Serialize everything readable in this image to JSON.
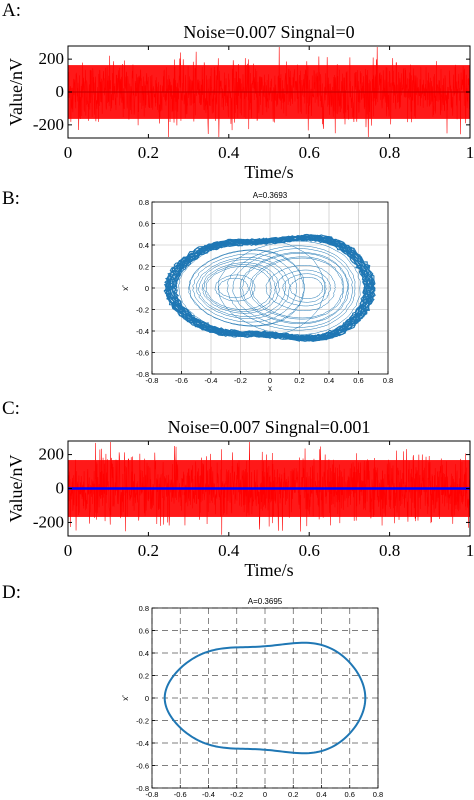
{
  "chart_data": [
    {
      "panel": "A:",
      "type": "line",
      "title": "Noise=0.007   Singnal=0",
      "xlabel": "Time/s",
      "ylabel": "Value/nV",
      "xlim": [
        0,
        1
      ],
      "ylim": [
        -280,
        280
      ],
      "xticks": [
        "0",
        "0.2",
        "0.4",
        "0.6",
        "0.8",
        "1"
      ],
      "yticks": [
        "200",
        "0",
        "-200"
      ],
      "series": [
        {
          "color": "#ff0000",
          "noise_amplitude": 210,
          "values": "random noise, approx ±210 nV"
        },
        {
          "color": "#cc0000",
          "values": [
            0,
            0
          ]
        }
      ]
    },
    {
      "panel": "B:",
      "type": "line",
      "title": "A=0.3693",
      "xlabel": "x",
      "ylabel": "x'",
      "xlim": [
        -0.8,
        0.8
      ],
      "ylim": [
        -0.8,
        0.8
      ],
      "xticks": [
        "-0.8",
        "-0.6",
        "-0.4",
        "-0.2",
        "0",
        "0.2",
        "0.4",
        "0.6",
        "0.8"
      ],
      "yticks": [
        "0.8",
        "0.6",
        "0.4",
        "0.2",
        "0",
        "-0.2",
        "-0.4",
        "-0.6",
        "-0.8"
      ],
      "grid": true,
      "series": [
        {
          "color": "#1f77b4",
          "description": "chaotic phase trajectory"
        }
      ]
    },
    {
      "panel": "C:",
      "type": "line",
      "title": "Noise=0.007   Singnal=0.001",
      "xlabel": "Time/s",
      "ylabel": "Value/nV",
      "xlim": [
        0,
        1
      ],
      "ylim": [
        -280,
        280
      ],
      "xticks": [
        "0",
        "0.2",
        "0.4",
        "0.6",
        "0.8",
        "1"
      ],
      "yticks": [
        "200",
        "0",
        "-200"
      ],
      "series": [
        {
          "color": "#ff0000",
          "noise_amplitude": 215
        },
        {
          "color": "#0000ff",
          "values": [
            0,
            0
          ]
        }
      ]
    },
    {
      "panel": "D:",
      "type": "line",
      "title": "A=0.3695",
      "xlabel": "x",
      "ylabel": "x'",
      "xlim": [
        -0.8,
        0.8
      ],
      "ylim": [
        -0.8,
        0.8
      ],
      "xticks": [
        "-0.8",
        "-0.6",
        "-0.4",
        "-0.2",
        "0",
        "0.2",
        "0.4",
        "0.6",
        "0.8"
      ],
      "yticks": [
        "0.8",
        "0.6",
        "0.4",
        "0.2",
        "0",
        "-0.2",
        "-0.4",
        "-0.6",
        "-0.8"
      ],
      "grid": "dashed",
      "series": [
        {
          "color": "#1f77b4",
          "description": "large-scale periodic orbit"
        }
      ]
    }
  ]
}
